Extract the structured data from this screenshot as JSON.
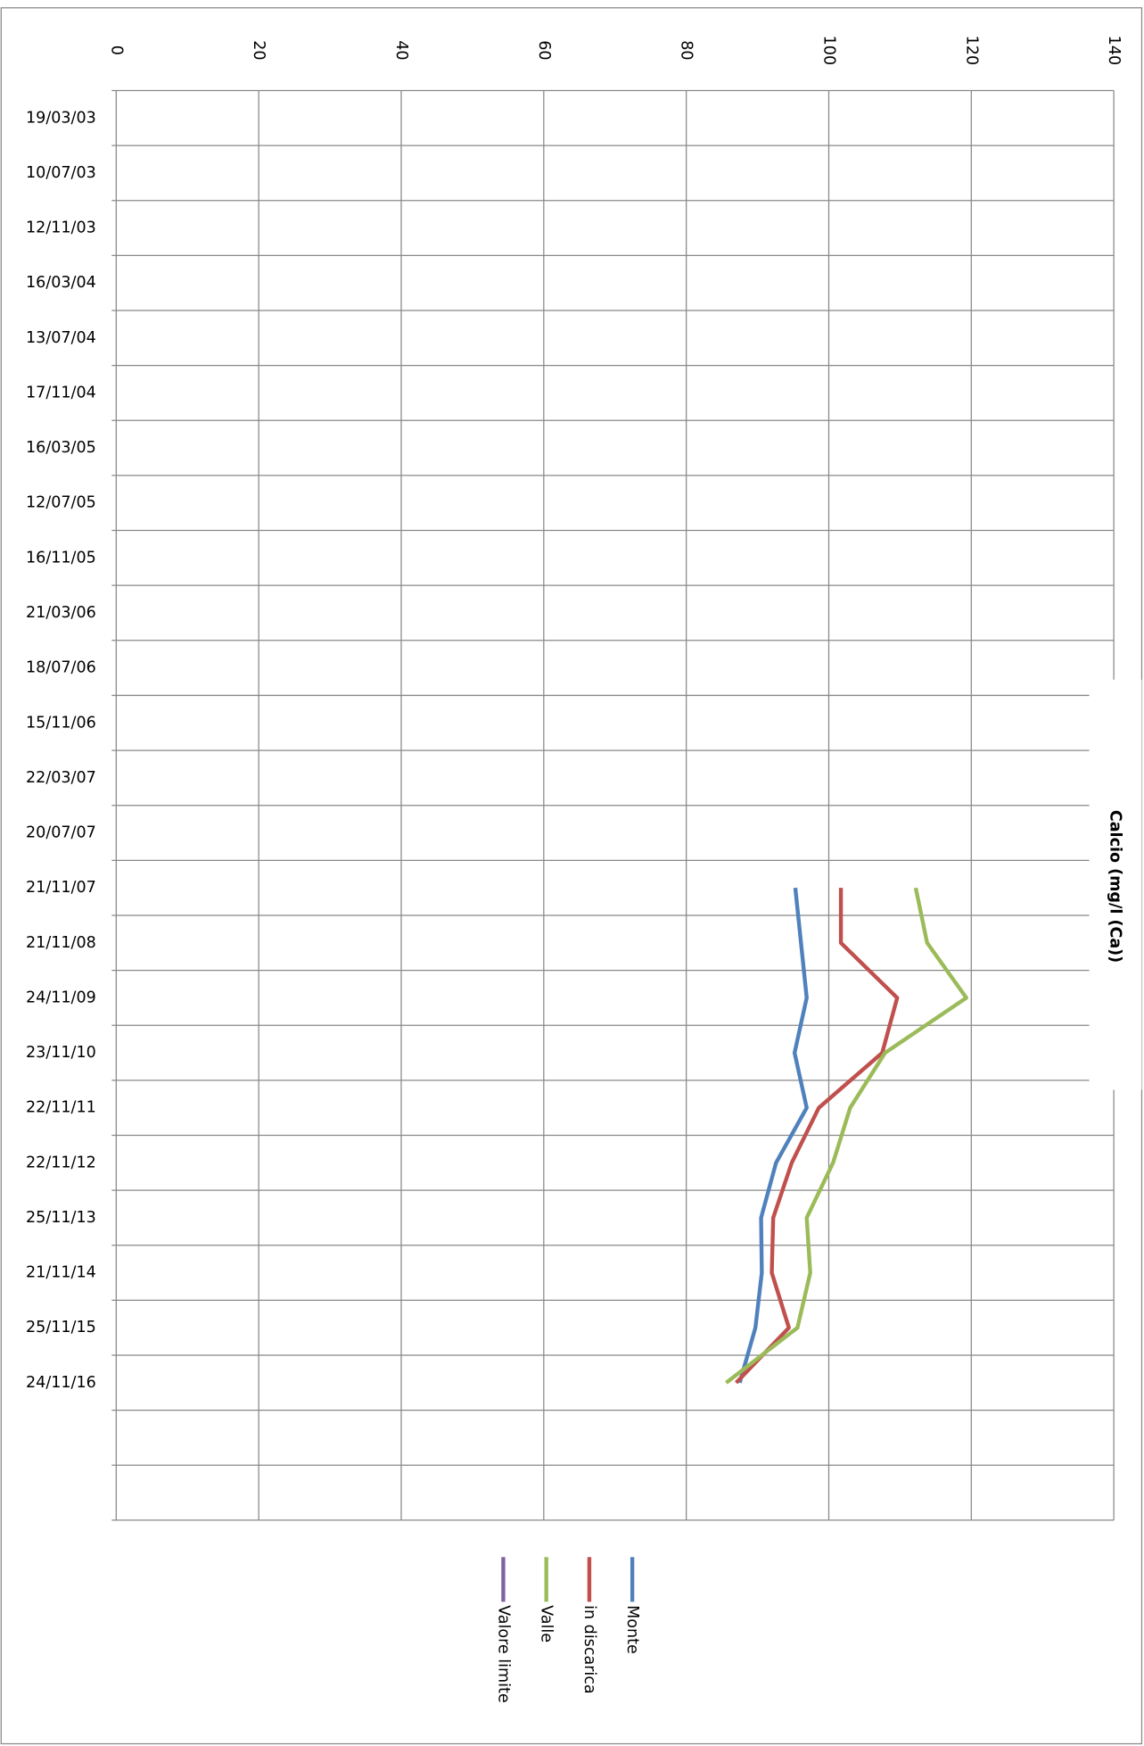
{
  "chart_data": {
    "type": "line",
    "title": "Calcio (mg/l (Ca))",
    "categories": [
      "19/03/03",
      "10/07/03",
      "12/11/03",
      "16/03/04",
      "13/07/04",
      "17/11/04",
      "16/03/05",
      "12/07/05",
      "16/11/05",
      "21/03/06",
      "18/07/06",
      "15/11/06",
      "22/03/07",
      "20/07/07",
      "21/11/07",
      "21/11/08",
      "24/11/09",
      "23/11/10",
      "22/11/11",
      "22/11/12",
      "25/11/13",
      "21/11/14",
      "25/11/15",
      "24/11/16",
      null,
      null
    ],
    "series": [
      {
        "name": "Monte",
        "color": "#4f81bd",
        "values": [
          null,
          null,
          null,
          null,
          null,
          null,
          null,
          null,
          null,
          null,
          null,
          null,
          null,
          null,
          95.3,
          96.1,
          96.9,
          95.2,
          96.9,
          92.6,
          90.5,
          90.6,
          89.7,
          87.5,
          null,
          null
        ]
      },
      {
        "name": "in discarica",
        "color": "#c0504d",
        "values": [
          null,
          null,
          null,
          null,
          null,
          null,
          null,
          null,
          null,
          null,
          null,
          null,
          null,
          null,
          101.7,
          101.7,
          109.6,
          107.5,
          98.6,
          94.8,
          92.2,
          92.0,
          94.4,
          87.0,
          null,
          null
        ]
      },
      {
        "name": "Valle",
        "color": "#9bbb59",
        "values": [
          null,
          null,
          null,
          null,
          null,
          null,
          null,
          null,
          null,
          null,
          null,
          null,
          null,
          null,
          112.2,
          113.8,
          119.3,
          107.9,
          103.0,
          100.6,
          96.9,
          97.4,
          95.6,
          85.6,
          null,
          null
        ]
      },
      {
        "name": "Valore limite",
        "color": "#8064a2",
        "values": [
          null,
          null,
          null,
          null,
          null,
          null,
          null,
          null,
          null,
          null,
          null,
          null,
          null,
          null,
          null,
          null,
          null,
          null,
          null,
          null,
          null,
          null,
          null,
          null,
          null,
          null
        ]
      }
    ],
    "ylim": [
      0,
      140
    ],
    "yticks": [
      0,
      20,
      40,
      60,
      80,
      100,
      120,
      140
    ],
    "grid": true
  }
}
